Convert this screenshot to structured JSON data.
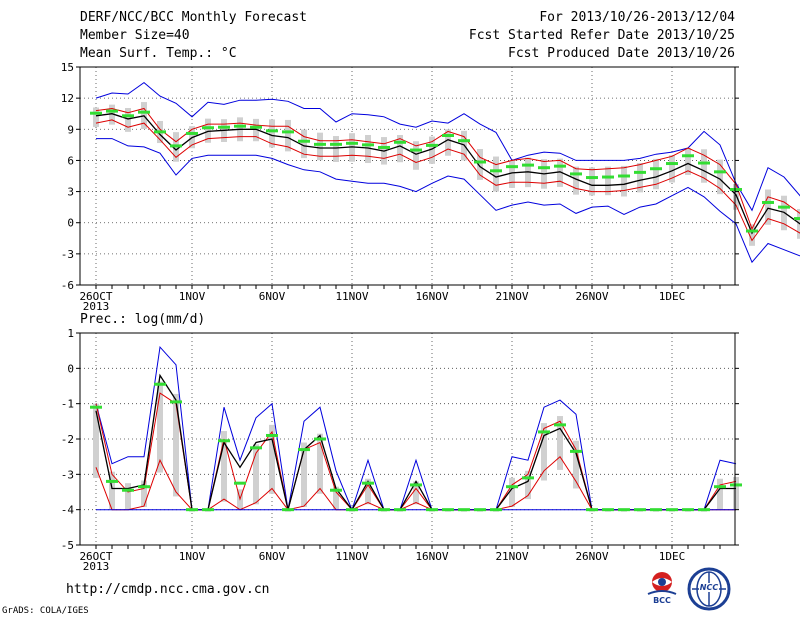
{
  "header": {
    "title": "DERF/NCC/BCC Monthly Forecast",
    "member_size": "Member Size=40",
    "variable_top": "Mean Surf. Temp.: °C",
    "period": "For 2013/10/26-2013/12/04",
    "start": "Fcst Started Refer Date 2013/10/25",
    "produced": "Fcst Produced Date 2013/10/26"
  },
  "footer": {
    "url": "http://cmdp.ncc.cma.gov.cn",
    "credit": "GrADS: COLA/IGES",
    "logo_bcc": "BCC",
    "logo_ncc": "NCC"
  },
  "chart_data": [
    {
      "type": "line",
      "title": "",
      "ylabel": "Mean Surf. Temp.: °C",
      "ylim": [
        -6,
        15
      ],
      "yticks": [
        -6,
        -3,
        0,
        3,
        6,
        9,
        12,
        15
      ],
      "x_start": "2013-10-26",
      "x_ticks": [
        {
          "label": "26OCT",
          "date": "2013-10-26"
        },
        {
          "label": "1NOV",
          "date": "2013-11-01"
        },
        {
          "label": "6NOV",
          "date": "2013-11-06"
        },
        {
          "label": "11NOV",
          "date": "2013-11-11"
        },
        {
          "label": "16NOV",
          "date": "2013-11-16"
        },
        {
          "label": "21NOV",
          "date": "2013-11-21"
        },
        {
          "label": "26NOV",
          "date": "2013-11-26"
        },
        {
          "label": "1DEC",
          "date": "2013-12-01"
        }
      ],
      "x_sublabel": "2013",
      "grid": true,
      "series": [
        {
          "values": [
            12.0,
            12.5,
            12.4,
            13.5,
            12.2,
            11.5,
            10.2,
            11.6,
            11.4,
            11.8,
            11.8,
            11.9,
            11.7,
            11.0,
            11.0,
            9.7,
            10.5,
            10.4,
            10.2,
            9.5,
            9.2,
            9.8,
            9.6,
            10.5,
            9.5,
            8.7,
            6.0,
            6.5,
            6.8,
            6.7,
            6.0,
            6.0,
            6.0,
            6.0,
            6.2,
            6.6,
            6.8,
            7.2,
            8.8,
            7.5,
            3.8,
            1.2,
            5.3,
            4.4,
            2.6,
            0.8,
            2.6,
            2.3,
            1.5,
            2.6,
            1.0
          ],
          "color": "#0000dd"
        },
        {
          "values": [
            10.8,
            11.0,
            10.6,
            11.0,
            9.0,
            7.8,
            9.0,
            9.5,
            9.5,
            9.6,
            9.4,
            9.3,
            9.3,
            8.3,
            7.9,
            7.9,
            8.0,
            7.8,
            7.6,
            8.1,
            7.4,
            7.8,
            8.8,
            8.3,
            6.3,
            5.6,
            6.0,
            6.2,
            5.9,
            6.0,
            5.2,
            5.1,
            5.2,
            5.3,
            5.6,
            6.0,
            6.4,
            7.2,
            6.5,
            5.6,
            3.7,
            -0.6,
            2.5,
            2.0,
            0.9,
            1.1,
            0.4,
            0.9,
            0.7,
            1.0,
            -0.2
          ],
          "color": "#dd0000"
        },
        {
          "values": [
            10.3,
            10.5,
            10.0,
            10.3,
            8.5,
            7.0,
            8.2,
            8.8,
            8.9,
            9.0,
            9.0,
            8.4,
            8.2,
            7.4,
            7.2,
            7.2,
            7.3,
            7.2,
            6.9,
            7.4,
            6.6,
            7.1,
            8.0,
            7.5,
            5.4,
            4.4,
            4.8,
            4.9,
            4.7,
            4.9,
            4.2,
            3.6,
            3.6,
            3.7,
            4.1,
            4.4,
            5.0,
            5.7,
            5.0,
            4.2,
            2.7,
            -1.0,
            1.4,
            1.0,
            -0.1,
            0.2,
            -0.2,
            0.2,
            -0.2,
            0.4,
            -0.6
          ],
          "color": "#000000"
        },
        {
          "values": [
            9.6,
            9.9,
            9.2,
            9.6,
            8.0,
            6.3,
            7.5,
            8.1,
            8.2,
            8.3,
            8.3,
            7.6,
            7.3,
            6.6,
            6.4,
            6.4,
            6.5,
            6.4,
            6.2,
            6.6,
            5.8,
            6.3,
            7.1,
            6.6,
            4.6,
            3.6,
            3.9,
            3.9,
            3.8,
            4.0,
            3.3,
            3.0,
            3.0,
            3.1,
            3.4,
            3.7,
            4.3,
            5.0,
            4.3,
            3.3,
            1.7,
            -1.7,
            0.4,
            -0.1,
            -1.0,
            -0.6,
            -0.9,
            -0.8,
            -0.9,
            -0.3,
            -1.3
          ],
          "color": "#dd0000"
        },
        {
          "values": [
            8.1,
            8.1,
            7.4,
            7.3,
            6.7,
            4.6,
            6.2,
            6.5,
            6.5,
            6.5,
            6.5,
            6.2,
            5.6,
            5.1,
            4.9,
            4.2,
            4.0,
            3.8,
            3.8,
            3.5,
            3.0,
            3.8,
            4.5,
            4.2,
            2.7,
            1.2,
            1.7,
            2.0,
            1.7,
            1.8,
            0.9,
            1.5,
            1.6,
            0.8,
            1.5,
            1.8,
            2.6,
            3.4,
            2.5,
            1.1,
            -0.1,
            -3.8,
            -2.0,
            -2.6,
            -3.2,
            -2.6,
            -3.3,
            -2.7,
            -2.4,
            -2.1,
            -2.8
          ],
          "color": "#0000dd"
        }
      ]
    },
    {
      "type": "line",
      "title": "",
      "ylabel": "Prec.: log(mm/d)",
      "ylim": [
        -5,
        1
      ],
      "yticks": [
        -5,
        -4,
        -3,
        -2,
        -1,
        0,
        1
      ],
      "x_start": "2013-10-26",
      "x_ticks": [
        {
          "label": "26OCT",
          "date": "2013-10-26"
        },
        {
          "label": "1NOV",
          "date": "2013-11-01"
        },
        {
          "label": "6NOV",
          "date": "2013-11-06"
        },
        {
          "label": "11NOV",
          "date": "2013-11-11"
        },
        {
          "label": "16NOV",
          "date": "2013-11-16"
        },
        {
          "label": "21NOV",
          "date": "2013-11-21"
        },
        {
          "label": "26NOV",
          "date": "2013-11-26"
        },
        {
          "label": "1DEC",
          "date": "2013-12-01"
        }
      ],
      "x_sublabel": "2013",
      "grid": true,
      "series": [
        {
          "values": [
            -1.0,
            -2.7,
            -2.5,
            -2.5,
            0.6,
            0.1,
            -4.0,
            -4.0,
            -1.1,
            -2.6,
            -1.4,
            -1.0,
            -4.0,
            -1.5,
            -1.1,
            -2.9,
            -4.0,
            -2.6,
            -4.0,
            -4.0,
            -2.6,
            -4.0,
            -4.0,
            -4.0,
            -4.0,
            -4.0,
            -2.5,
            -2.6,
            -1.1,
            -0.9,
            -1.3,
            -4.0,
            -4.0,
            -4.0,
            -4.0,
            -4.0,
            -4.0,
            -4.0,
            -4.0,
            -2.6,
            -2.7
          ],
          "color": "#0000dd"
        },
        {
          "values": [
            -1.0,
            -3.0,
            -3.5,
            -3.4,
            -0.7,
            -1.0,
            -4.0,
            -4.0,
            -2.0,
            -3.7,
            -2.4,
            -1.8,
            -4.0,
            -2.3,
            -2.1,
            -3.5,
            -4.0,
            -3.3,
            -4.0,
            -4.0,
            -3.4,
            -4.0,
            -4.0,
            -4.0,
            -4.0,
            -4.0,
            -3.3,
            -3.0,
            -1.7,
            -1.5,
            -2.3,
            -4.0,
            -4.0,
            -4.0,
            -4.0,
            -4.0,
            -4.0,
            -4.0,
            -4.0,
            -3.3,
            -3.2
          ],
          "color": "#dd0000"
        },
        {
          "values": [
            -1.2,
            -3.4,
            -3.4,
            -3.3,
            -0.2,
            -0.9,
            -4.0,
            -4.0,
            -2.1,
            -2.8,
            -2.1,
            -2.0,
            -4.0,
            -2.3,
            -1.9,
            -3.4,
            -4.0,
            -3.2,
            -4.0,
            -4.0,
            -3.2,
            -4.0,
            -4.0,
            -4.0,
            -4.0,
            -4.0,
            -3.4,
            -3.2,
            -1.9,
            -1.7,
            -2.4,
            -4.0,
            -4.0,
            -4.0,
            -4.0,
            -4.0,
            -4.0,
            -4.0,
            -4.0,
            -3.4,
            -3.4
          ],
          "color": "#000000"
        },
        {
          "values": [
            -2.8,
            -4.0,
            -4.0,
            -3.9,
            -2.6,
            -3.5,
            -4.0,
            -4.0,
            -3.7,
            -4.0,
            -3.8,
            -3.4,
            -4.0,
            -3.9,
            -3.4,
            -4.0,
            -4.0,
            -3.8,
            -4.0,
            -4.0,
            -3.8,
            -4.0,
            -4.0,
            -4.0,
            -4.0,
            -4.0,
            -3.9,
            -3.6,
            -2.9,
            -2.5,
            -3.2,
            -4.0,
            -4.0,
            -4.0,
            -4.0,
            -4.0,
            -4.0,
            -4.0,
            -4.0,
            -4.0,
            -4.0
          ],
          "color": "#dd0000"
        },
        {
          "values": [
            -4.0,
            -4.0,
            -4.0,
            -4.0,
            -4.0,
            -4.0,
            -4.0,
            -4.0,
            -4.0,
            -4.0,
            -4.0,
            -4.0,
            -4.0,
            -4.0,
            -4.0,
            -4.0,
            -4.0,
            -4.0,
            -4.0,
            -4.0,
            -4.0,
            -4.0,
            -4.0,
            -4.0,
            -4.0,
            -4.0,
            -4.0,
            -4.0,
            -4.0,
            -4.0,
            -4.0,
            -4.0,
            -4.0,
            -4.0,
            -4.0,
            -4.0,
            -4.0,
            -4.0,
            -4.0,
            -4.0,
            -4.0
          ],
          "color": "#0000dd"
        }
      ]
    }
  ]
}
